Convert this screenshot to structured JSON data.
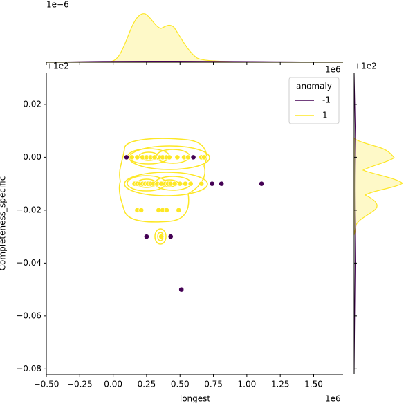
{
  "chart_data": {
    "type": "scatter",
    "x_label": "longest",
    "y_label": "Completeness_specific",
    "x_offset": "1e6",
    "y_offset": "+1e2",
    "top_marginal_offset": "1e−6",
    "top_marginal_x_offset": "1e6",
    "right_marginal_offset": "+1e2",
    "xlim": [
      -0.5,
      1.72
    ],
    "ylim": [
      -0.082,
      0.032
    ],
    "xticks": [
      {
        "value": -0.5,
        "label": "−0.50"
      },
      {
        "value": -0.25,
        "label": "−0.25"
      },
      {
        "value": 0,
        "label": "0.00"
      },
      0.25,
      {
        "value": 0.5,
        "label": "0.50"
      },
      0.75,
      {
        "value": 1,
        "label": "1.00"
      },
      1.25,
      {
        "value": 1.5,
        "label": "1.50"
      }
    ],
    "yticks": [
      {
        "value": -0.08,
        "label": "−0.08"
      },
      {
        "value": -0.06,
        "label": "−0.06"
      },
      {
        "value": -0.04,
        "label": "−0.04"
      },
      {
        "value": -0.02,
        "label": "−0.02"
      },
      {
        "value": 0,
        "label": "0.00"
      },
      0.02
    ],
    "legend_title": "anomaly",
    "legend_position": "upper right",
    "series": [
      {
        "name": "-1",
        "color": "#440154",
        "x": [
          0.1,
          0.6,
          0.74,
          0.81,
          1.11,
          0.25,
          0.43,
          0.51
        ],
        "values": [
          0,
          0,
          -0.01,
          -0.01,
          -0.01,
          -0.03,
          -0.03,
          -0.05
        ]
      },
      {
        "name": "1",
        "color": "#fde725",
        "x": [
          0.14,
          0.18,
          0.22,
          0.25,
          0.28,
          0.31,
          0.35,
          0.37,
          0.4,
          0.42,
          0.48,
          0.53,
          0.56,
          0.66,
          0.68,
          0.16,
          0.18,
          0.2,
          0.22,
          0.24,
          0.26,
          0.28,
          0.3,
          0.33,
          0.36,
          0.39,
          0.41,
          0.43,
          0.46,
          0.5,
          0.54,
          0.58,
          0.66,
          0.18,
          0.21,
          0.34,
          0.37,
          0.4,
          0.49,
          0.36
        ],
        "values": [
          0,
          0,
          0,
          0,
          0,
          0,
          0,
          0,
          0,
          0,
          0,
          0,
          0,
          0,
          0,
          -0.01,
          -0.01,
          -0.01,
          -0.01,
          -0.01,
          -0.01,
          -0.01,
          -0.01,
          -0.01,
          -0.01,
          -0.01,
          -0.01,
          -0.01,
          -0.01,
          -0.01,
          -0.01,
          -0.01,
          -0.01,
          -0.02,
          -0.02,
          -0.02,
          -0.02,
          -0.02,
          -0.02,
          -0.03
        ]
      }
    ]
  }
}
